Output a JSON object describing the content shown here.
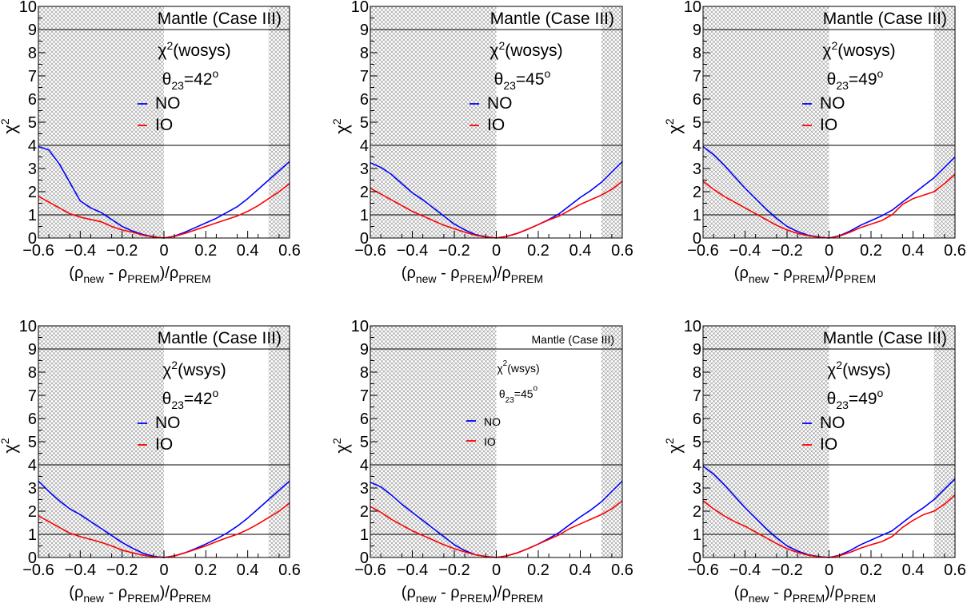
{
  "chart_data": [
    {
      "type": "line",
      "title": "Mantle (Case III)",
      "stat_label": "χ²(wosys)",
      "stat_main": "χ",
      "stat_sup": "2",
      "stat_paren": "(wosys)",
      "theta_main": "θ",
      "theta_sub": "23",
      "theta_value": "=42",
      "theta_sup": "o",
      "ylabel": "χ²",
      "ylabel_main": "χ",
      "ylabel_sup": "2",
      "xlabel": "(ρnew - ρPREM)/ρPREM",
      "xlim": [
        -0.6,
        0.6
      ],
      "ylim": [
        0,
        10
      ],
      "xticks": [
        "−0.6",
        "−0.4",
        "−0.2",
        "0",
        "0.2",
        "0.4",
        "0.6"
      ],
      "yticks": [
        "0",
        "1",
        "2",
        "3",
        "4",
        "5",
        "6",
        "7",
        "8",
        "9",
        "10"
      ],
      "ref_lines": [
        1,
        4,
        9
      ],
      "shaded_regions": [
        [
          -0.6,
          0.0
        ],
        [
          0.5,
          0.6
        ]
      ],
      "series": [
        {
          "name": "NO",
          "color": "#0000ff",
          "x": [
            -0.6,
            -0.55,
            -0.5,
            -0.45,
            -0.4,
            -0.35,
            -0.3,
            -0.25,
            -0.2,
            -0.15,
            -0.1,
            -0.05,
            0,
            0.05,
            0.1,
            0.15,
            0.2,
            0.25,
            0.3,
            0.35,
            0.4,
            0.45,
            0.5,
            0.55,
            0.6
          ],
          "y": [
            3.95,
            3.8,
            3.2,
            2.4,
            1.6,
            1.3,
            1.1,
            0.8,
            0.5,
            0.3,
            0.15,
            0.05,
            0,
            0.08,
            0.25,
            0.45,
            0.65,
            0.85,
            1.1,
            1.35,
            1.7,
            2.1,
            2.5,
            2.9,
            3.3
          ]
        },
        {
          "name": "IO",
          "color": "#ff0000",
          "x": [
            -0.6,
            -0.55,
            -0.5,
            -0.45,
            -0.4,
            -0.35,
            -0.3,
            -0.25,
            -0.2,
            -0.15,
            -0.1,
            -0.05,
            0,
            0.05,
            0.1,
            0.15,
            0.2,
            0.25,
            0.3,
            0.35,
            0.4,
            0.45,
            0.5,
            0.55,
            0.6
          ],
          "y": [
            1.8,
            1.55,
            1.3,
            1.05,
            0.9,
            0.8,
            0.7,
            0.5,
            0.35,
            0.25,
            0.12,
            0.04,
            0,
            0.07,
            0.2,
            0.35,
            0.5,
            0.65,
            0.8,
            0.95,
            1.15,
            1.4,
            1.7,
            2.0,
            2.35
          ]
        }
      ]
    },
    {
      "type": "line",
      "title": "Mantle (Case III)",
      "stat_label": "χ²(wosys)",
      "stat_main": "χ",
      "stat_sup": "2",
      "stat_paren": "(wosys)",
      "theta_main": "θ",
      "theta_sub": "23",
      "theta_value": "=45",
      "theta_sup": "o",
      "ylabel": "χ²",
      "ylabel_main": "χ",
      "ylabel_sup": "2",
      "xlabel": "(ρnew - ρPREM)/ρPREM",
      "xlim": [
        -0.6,
        0.6
      ],
      "ylim": [
        0,
        10
      ],
      "xticks": [
        "−0.6",
        "−0.4",
        "−0.2",
        "0",
        "0.2",
        "0.4",
        "0.6"
      ],
      "yticks": [
        "0",
        "1",
        "2",
        "3",
        "4",
        "5",
        "6",
        "7",
        "8",
        "9",
        "10"
      ],
      "ref_lines": [
        1,
        4,
        9
      ],
      "shaded_regions": [
        [
          -0.6,
          0.0
        ],
        [
          0.5,
          0.6
        ]
      ],
      "series": [
        {
          "name": "NO",
          "color": "#0000ff",
          "x": [
            -0.6,
            -0.55,
            -0.5,
            -0.45,
            -0.4,
            -0.35,
            -0.3,
            -0.25,
            -0.2,
            -0.15,
            -0.1,
            -0.05,
            0,
            0.05,
            0.1,
            0.15,
            0.2,
            0.25,
            0.3,
            0.35,
            0.4,
            0.45,
            0.5,
            0.55,
            0.6
          ],
          "y": [
            3.25,
            3.05,
            2.75,
            2.35,
            1.95,
            1.65,
            1.3,
            0.95,
            0.6,
            0.35,
            0.15,
            0.05,
            0,
            0.07,
            0.2,
            0.38,
            0.58,
            0.8,
            1.05,
            1.4,
            1.75,
            2.05,
            2.4,
            2.85,
            3.3
          ]
        },
        {
          "name": "IO",
          "color": "#ff0000",
          "x": [
            -0.6,
            -0.55,
            -0.5,
            -0.45,
            -0.4,
            -0.35,
            -0.3,
            -0.25,
            -0.2,
            -0.15,
            -0.1,
            -0.05,
            0,
            0.05,
            0.1,
            0.15,
            0.2,
            0.25,
            0.3,
            0.35,
            0.4,
            0.45,
            0.5,
            0.55,
            0.6
          ],
          "y": [
            2.15,
            1.9,
            1.65,
            1.4,
            1.15,
            0.95,
            0.75,
            0.55,
            0.4,
            0.25,
            0.12,
            0.04,
            0,
            0.07,
            0.2,
            0.38,
            0.58,
            0.78,
            0.95,
            1.2,
            1.45,
            1.65,
            1.85,
            2.1,
            2.45
          ]
        }
      ]
    },
    {
      "type": "line",
      "title": "Mantle (Case III)",
      "stat_label": "χ²(wosys)",
      "stat_main": "χ",
      "stat_sup": "2",
      "stat_paren": "(wosys)",
      "theta_main": "θ",
      "theta_sub": "23",
      "theta_value": "=49",
      "theta_sup": "o",
      "ylabel": "χ²",
      "ylabel_main": "χ",
      "ylabel_sup": "2",
      "xlabel": "(ρnew - ρPREM)/ρPREM",
      "xlim": [
        -0.6,
        0.6
      ],
      "ylim": [
        0,
        10
      ],
      "xticks": [
        "−0.6",
        "−0.4",
        "−0.2",
        "0",
        "0.2",
        "0.4",
        "0.6"
      ],
      "yticks": [
        "0",
        "1",
        "2",
        "3",
        "4",
        "5",
        "6",
        "7",
        "8",
        "9",
        "10"
      ],
      "ref_lines": [
        1,
        4,
        9
      ],
      "shaded_regions": [
        [
          -0.6,
          0.0
        ],
        [
          0.5,
          0.6
        ]
      ],
      "series": [
        {
          "name": "NO",
          "color": "#0000ff",
          "x": [
            -0.6,
            -0.55,
            -0.5,
            -0.45,
            -0.4,
            -0.35,
            -0.3,
            -0.25,
            -0.2,
            -0.15,
            -0.1,
            -0.05,
            0,
            0.05,
            0.1,
            0.15,
            0.2,
            0.25,
            0.3,
            0.35,
            0.4,
            0.45,
            0.5,
            0.55,
            0.6
          ],
          "y": [
            3.95,
            3.6,
            3.15,
            2.65,
            2.15,
            1.7,
            1.25,
            0.85,
            0.5,
            0.28,
            0.12,
            0.04,
            0,
            0.1,
            0.3,
            0.55,
            0.75,
            0.95,
            1.2,
            1.55,
            1.9,
            2.25,
            2.6,
            3.05,
            3.5
          ]
        },
        {
          "name": "IO",
          "color": "#ff0000",
          "x": [
            -0.6,
            -0.55,
            -0.5,
            -0.45,
            -0.4,
            -0.35,
            -0.3,
            -0.25,
            -0.2,
            -0.15,
            -0.1,
            -0.05,
            0,
            0.05,
            0.1,
            0.15,
            0.2,
            0.25,
            0.3,
            0.35,
            0.4,
            0.45,
            0.5,
            0.55,
            0.6
          ],
          "y": [
            2.45,
            2.1,
            1.8,
            1.55,
            1.3,
            1.05,
            0.8,
            0.55,
            0.35,
            0.2,
            0.1,
            0.03,
            0,
            0.08,
            0.25,
            0.45,
            0.6,
            0.75,
            1.0,
            1.45,
            1.7,
            1.85,
            2.0,
            2.35,
            2.75
          ]
        }
      ]
    },
    {
      "type": "line",
      "title": "Mantle (Case III)",
      "stat_label": "χ²(wsys)",
      "stat_main": "χ",
      "stat_sup": "2",
      "stat_paren": "(wsys)",
      "theta_main": "θ",
      "theta_sub": "23",
      "theta_value": "=42",
      "theta_sup": "o",
      "ylabel": "χ²",
      "ylabel_main": "χ",
      "ylabel_sup": "2",
      "xlabel": "(ρnew - ρPREM)/ρPREM",
      "xlim": [
        -0.6,
        0.6
      ],
      "ylim": [
        0,
        10
      ],
      "xticks": [
        "−0.6",
        "−0.4",
        "−0.2",
        "0",
        "0.2",
        "0.4",
        "0.6"
      ],
      "yticks": [
        "0",
        "1",
        "2",
        "3",
        "4",
        "5",
        "6",
        "7",
        "8",
        "9",
        "10"
      ],
      "ref_lines": [
        1,
        4,
        9
      ],
      "shaded_regions": [
        [
          -0.6,
          0.0
        ],
        [
          0.5,
          0.6
        ]
      ],
      "series": [
        {
          "name": "NO",
          "color": "#0000ff",
          "x": [
            -0.6,
            -0.55,
            -0.5,
            -0.45,
            -0.4,
            -0.35,
            -0.3,
            -0.25,
            -0.2,
            -0.15,
            -0.1,
            -0.05,
            0,
            0.05,
            0.1,
            0.15,
            0.2,
            0.25,
            0.3,
            0.35,
            0.4,
            0.45,
            0.5,
            0.55,
            0.6
          ],
          "y": [
            3.3,
            2.85,
            2.45,
            2.1,
            1.85,
            1.55,
            1.25,
            0.95,
            0.65,
            0.4,
            0.18,
            0.05,
            0,
            0.07,
            0.2,
            0.38,
            0.58,
            0.8,
            1.05,
            1.35,
            1.7,
            2.1,
            2.5,
            2.9,
            3.3
          ]
        },
        {
          "name": "IO",
          "color": "#ff0000",
          "x": [
            -0.6,
            -0.55,
            -0.5,
            -0.45,
            -0.4,
            -0.35,
            -0.3,
            -0.25,
            -0.2,
            -0.15,
            -0.1,
            -0.05,
            0,
            0.05,
            0.1,
            0.15,
            0.2,
            0.25,
            0.3,
            0.35,
            0.4,
            0.45,
            0.5,
            0.55,
            0.6
          ],
          "y": [
            1.8,
            1.55,
            1.3,
            1.05,
            0.9,
            0.78,
            0.65,
            0.5,
            0.32,
            0.2,
            0.1,
            0.03,
            0,
            0.07,
            0.2,
            0.35,
            0.5,
            0.68,
            0.85,
            1.0,
            1.2,
            1.45,
            1.72,
            2.0,
            2.35
          ]
        }
      ]
    },
    {
      "type": "line",
      "title": "Mantle (Case III)",
      "stat_label": "χ²(wsys)",
      "stat_main": "χ",
      "stat_sup": "2",
      "stat_paren": "(wsys)",
      "theta_main": "θ",
      "theta_sub": "23",
      "theta_value": "=45",
      "theta_sup": "o",
      "ylabel": "χ²",
      "ylabel_main": "χ",
      "ylabel_sup": "2",
      "xlabel": "(ρnew - ρPREM)/ρPREM",
      "xlim": [
        -0.6,
        0.6
      ],
      "ylim": [
        0,
        10
      ],
      "xticks": [
        "−0.6",
        "−0.4",
        "−0.2",
        "0",
        "0.2",
        "0.4",
        "0.6"
      ],
      "yticks": [
        "0",
        "1",
        "2",
        "3",
        "4",
        "5",
        "6",
        "7",
        "8",
        "9",
        "10"
      ],
      "ref_lines": [
        1,
        4,
        9
      ],
      "shaded_regions": [
        [
          -0.6,
          0.0
        ],
        [
          0.5,
          0.6
        ]
      ],
      "small_labels": true,
      "series": [
        {
          "name": "NO",
          "color": "#0000ff",
          "x": [
            -0.6,
            -0.55,
            -0.5,
            -0.45,
            -0.4,
            -0.35,
            -0.3,
            -0.25,
            -0.2,
            -0.15,
            -0.1,
            -0.05,
            0,
            0.05,
            0.1,
            0.15,
            0.2,
            0.25,
            0.3,
            0.35,
            0.4,
            0.45,
            0.5,
            0.55,
            0.6
          ],
          "y": [
            3.25,
            3.05,
            2.7,
            2.3,
            1.95,
            1.6,
            1.25,
            0.9,
            0.55,
            0.3,
            0.12,
            0.04,
            0,
            0.07,
            0.2,
            0.38,
            0.58,
            0.82,
            1.08,
            1.42,
            1.75,
            2.05,
            2.4,
            2.85,
            3.3
          ]
        },
        {
          "name": "IO",
          "color": "#ff0000",
          "x": [
            -0.6,
            -0.55,
            -0.5,
            -0.45,
            -0.4,
            -0.35,
            -0.3,
            -0.25,
            -0.2,
            -0.15,
            -0.1,
            -0.05,
            0,
            0.05,
            0.1,
            0.15,
            0.2,
            0.25,
            0.3,
            0.35,
            0.4,
            0.45,
            0.5,
            0.55,
            0.6
          ],
          "y": [
            2.2,
            1.95,
            1.65,
            1.4,
            1.15,
            0.95,
            0.75,
            0.55,
            0.38,
            0.24,
            0.12,
            0.04,
            0,
            0.07,
            0.2,
            0.38,
            0.58,
            0.78,
            0.98,
            1.25,
            1.45,
            1.65,
            1.85,
            2.1,
            2.45
          ]
        }
      ]
    },
    {
      "type": "line",
      "title": "Mantle (Case III)",
      "stat_label": "χ²(wsys)",
      "stat_main": "χ",
      "stat_sup": "2",
      "stat_paren": "(wsys)",
      "theta_main": "θ",
      "theta_sub": "23",
      "theta_value": "=49",
      "theta_sup": "o",
      "ylabel": "χ²",
      "ylabel_main": "χ",
      "ylabel_sup": "2",
      "xlabel": "(ρnew - ρPREM)/ρPREM",
      "xlim": [
        -0.6,
        0.6
      ],
      "ylim": [
        0,
        10
      ],
      "xticks": [
        "−0.6",
        "−0.4",
        "−0.2",
        "0",
        "0.2",
        "0.4",
        "0.6"
      ],
      "yticks": [
        "0",
        "1",
        "2",
        "3",
        "4",
        "5",
        "6",
        "7",
        "8",
        "9",
        "10"
      ],
      "ref_lines": [
        1,
        4,
        9
      ],
      "shaded_regions": [
        [
          -0.6,
          0.0
        ],
        [
          0.5,
          0.6
        ]
      ],
      "series": [
        {
          "name": "NO",
          "color": "#0000ff",
          "x": [
            -0.6,
            -0.55,
            -0.5,
            -0.45,
            -0.4,
            -0.35,
            -0.3,
            -0.25,
            -0.2,
            -0.15,
            -0.1,
            -0.05,
            0,
            0.05,
            0.1,
            0.15,
            0.2,
            0.25,
            0.3,
            0.35,
            0.4,
            0.45,
            0.5,
            0.55,
            0.6
          ],
          "y": [
            3.95,
            3.6,
            3.15,
            2.65,
            2.15,
            1.7,
            1.25,
            0.85,
            0.5,
            0.28,
            0.12,
            0.04,
            0,
            0.1,
            0.3,
            0.55,
            0.75,
            0.95,
            1.15,
            1.5,
            1.85,
            2.15,
            2.5,
            2.95,
            3.4
          ]
        },
        {
          "name": "IO",
          "color": "#ff0000",
          "x": [
            -0.6,
            -0.55,
            -0.5,
            -0.45,
            -0.4,
            -0.35,
            -0.3,
            -0.25,
            -0.2,
            -0.15,
            -0.1,
            -0.05,
            0,
            0.05,
            0.1,
            0.15,
            0.2,
            0.25,
            0.3,
            0.35,
            0.4,
            0.45,
            0.5,
            0.55,
            0.6
          ],
          "y": [
            2.45,
            2.1,
            1.8,
            1.55,
            1.35,
            1.1,
            0.85,
            0.6,
            0.38,
            0.22,
            0.1,
            0.03,
            0,
            0.08,
            0.22,
            0.4,
            0.55,
            0.68,
            0.9,
            1.3,
            1.6,
            1.85,
            2.0,
            2.3,
            2.7
          ]
        }
      ]
    }
  ]
}
